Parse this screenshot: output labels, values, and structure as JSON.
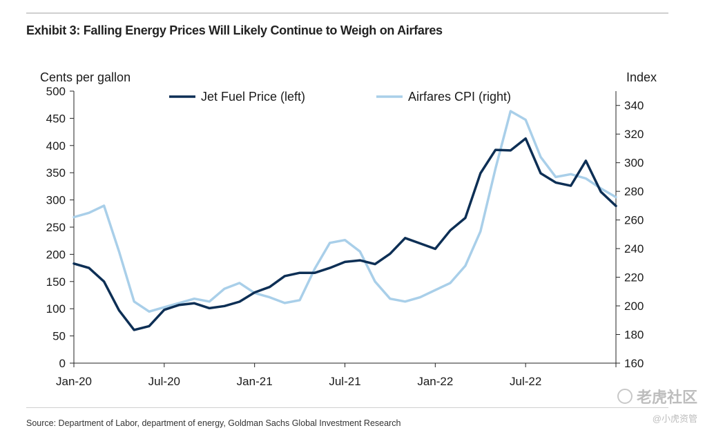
{
  "title": "Exhibit 3: Falling Energy Prices Will Likely Continue to Weigh on Airfares",
  "source": "Source: Department of Labor, department of energy, Goldman Sachs Global Investment Research",
  "watermark": {
    "brand": "老虎社区",
    "handle": "@小虎资管"
  },
  "colors": {
    "jet_fuel": "#0d2f55",
    "airfares": "#a9cfe9",
    "axis": "#222222"
  },
  "chart_data": {
    "type": "line",
    "title": "Exhibit 3: Falling Energy Prices Will Likely Continue to Weigh on Airfares",
    "ylabel_left": "Cents per gallon",
    "ylabel_right": "Index",
    "ylim_left": [
      0,
      500
    ],
    "ylim_right": [
      160,
      350
    ],
    "yticks_left": [
      0,
      50,
      100,
      150,
      200,
      250,
      300,
      350,
      400,
      450,
      500
    ],
    "yticks_right": [
      160,
      180,
      200,
      220,
      240,
      260,
      280,
      300,
      320,
      340
    ],
    "x_ticks": [
      "Jan-20",
      "Jul-20",
      "Jan-21",
      "Jul-21",
      "Jan-22",
      "Jul-22"
    ],
    "x_tick_index": [
      0,
      6,
      12,
      18,
      24,
      30
    ],
    "grid": false,
    "legend": "top",
    "series": [
      {
        "name": "Jet Fuel Price (left)",
        "axis": "left",
        "values": [
          183,
          175,
          150,
          97,
          61,
          68,
          98,
          107,
          110,
          101,
          105,
          113,
          130,
          140,
          160,
          166,
          166,
          175,
          186,
          189,
          182,
          201,
          230,
          220,
          210,
          244,
          267,
          349,
          392,
          391,
          413,
          349,
          332,
          326,
          372,
          315,
          289
        ]
      },
      {
        "name": "Airfares CPI (right)",
        "axis": "right",
        "values": [
          262,
          265,
          270,
          238,
          203,
          196,
          199,
          202,
          205,
          203,
          212,
          216,
          209,
          206,
          202,
          204,
          226,
          244,
          246,
          238,
          217,
          205,
          203,
          206,
          211,
          216,
          228,
          252,
          296,
          336,
          330,
          304,
          290,
          292,
          289,
          282,
          276
        ]
      }
    ]
  }
}
